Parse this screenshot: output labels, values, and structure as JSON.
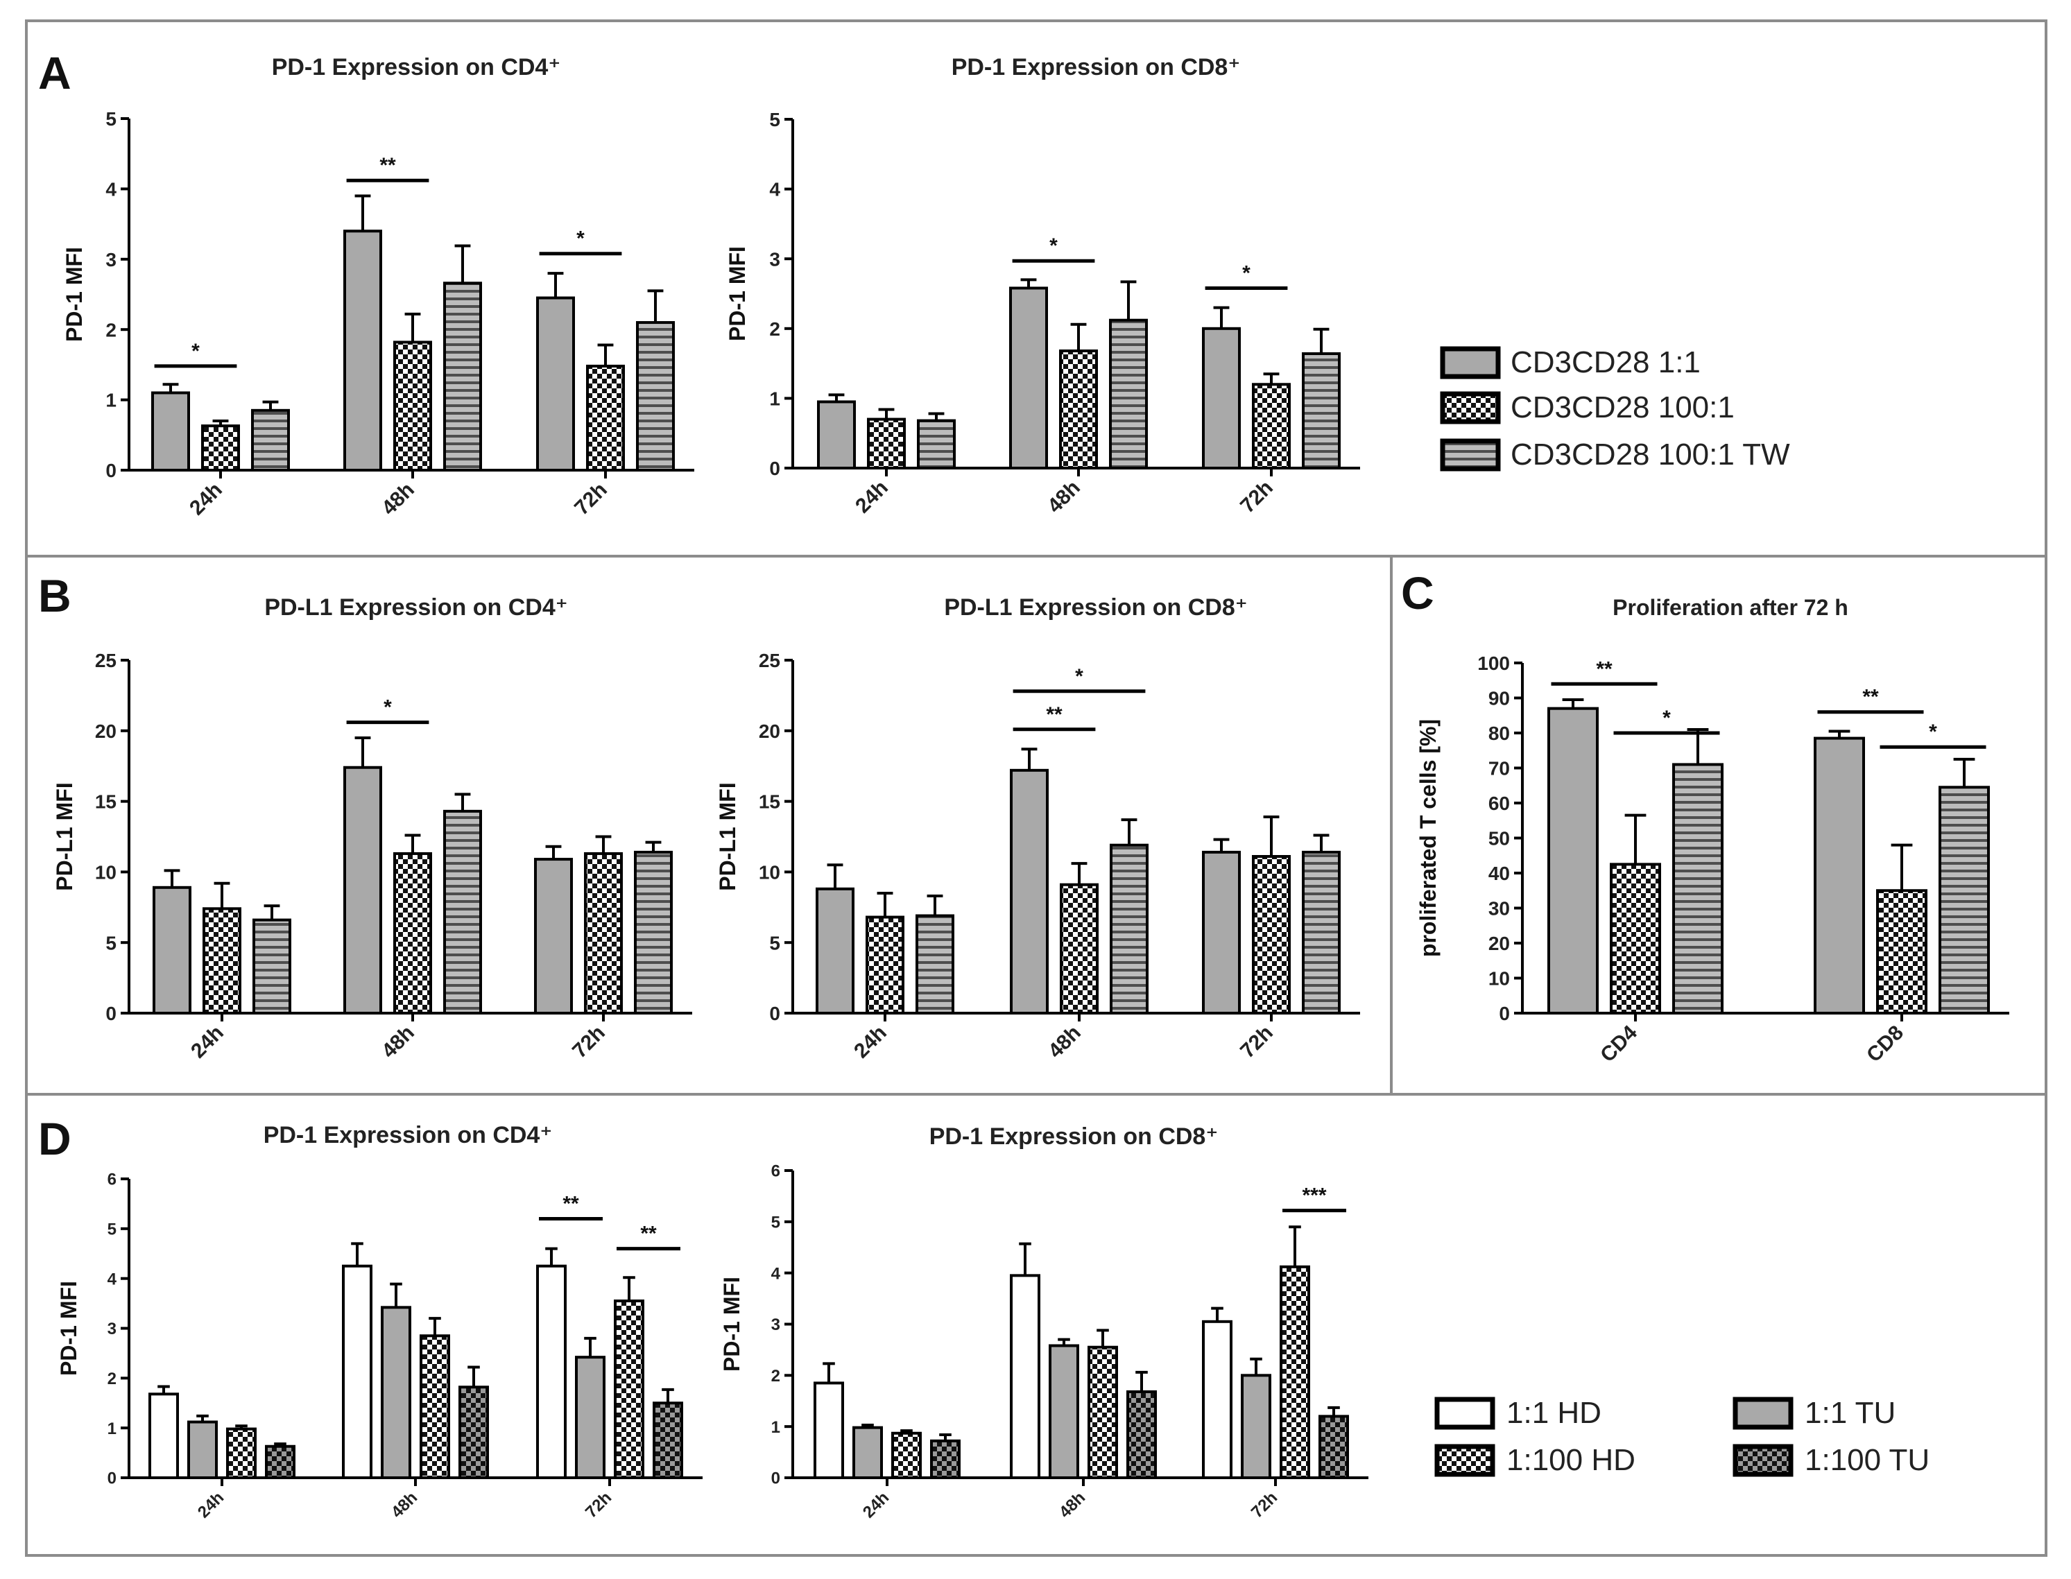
{
  "colors": {
    "bar_gray": "#a9a9a9",
    "bar_white": "#ffffff",
    "stroke": "#000000",
    "panel_border": "#8c8c8c",
    "background": "#ffffff"
  },
  "legends": {
    "abc": {
      "items": [
        {
          "label": "CD3CD28 1:1",
          "pattern": "gray"
        },
        {
          "label": "CD3CD28 100:1",
          "pattern": "checker_white"
        },
        {
          "label": "CD3CD28 100:1 TW",
          "pattern": "hlines"
        }
      ]
    },
    "d": {
      "items": [
        {
          "label": "1:1 HD",
          "pattern": "white"
        },
        {
          "label": "1:1 TU",
          "pattern": "gray"
        },
        {
          "label": "1:100 HD",
          "pattern": "checker_white"
        },
        {
          "label": "1:100 TU",
          "pattern": "checker_gray"
        }
      ]
    }
  },
  "chart_data": [
    {
      "panel": "A",
      "type": "bar",
      "title": "PD-1 Expression  on CD4⁺",
      "ylabel": "PD-1  MFI",
      "ylim": [
        0,
        5
      ],
      "yticks": [
        "0",
        "1",
        "2",
        "3",
        "4",
        "5"
      ],
      "categories": [
        "24h",
        "48h",
        "72h"
      ],
      "series": [
        {
          "name": "CD3CD28 1:1",
          "pattern": "gray",
          "values": [
            1.1,
            3.4,
            2.45
          ],
          "errors": [
            0.12,
            0.5,
            0.35
          ]
        },
        {
          "name": "CD3CD28 100:1",
          "pattern": "checker_white",
          "values": [
            0.63,
            1.82,
            1.48
          ],
          "errors": [
            0.07,
            0.4,
            0.3
          ]
        },
        {
          "name": "CD3CD28 100:1 TW",
          "pattern": "hlines",
          "values": [
            0.85,
            2.66,
            2.1
          ],
          "errors": [
            0.12,
            0.53,
            0.45
          ]
        }
      ],
      "significance": [
        {
          "group": 0,
          "from": 0,
          "to": 1,
          "y": 1.48,
          "label": "*"
        },
        {
          "group": 1,
          "from": 0,
          "to": 1,
          "y": 4.12,
          "label": "**"
        },
        {
          "group": 2,
          "from": 0,
          "to": 1,
          "y": 3.08,
          "label": "*"
        }
      ]
    },
    {
      "panel": "A",
      "type": "bar",
      "title": "PD-1 Expression  on CD8⁺",
      "ylabel": "PD-1  MFI",
      "ylim": [
        0,
        5
      ],
      "yticks": [
        "0",
        "1",
        "2",
        "3",
        "4",
        "5"
      ],
      "categories": [
        "24h",
        "48h",
        "72h"
      ],
      "series": [
        {
          "name": "CD3CD28 1:1",
          "pattern": "gray",
          "values": [
            0.95,
            2.58,
            2.0
          ],
          "errors": [
            0.1,
            0.12,
            0.3
          ]
        },
        {
          "name": "CD3CD28 100:1",
          "pattern": "checker_white",
          "values": [
            0.7,
            1.68,
            1.2
          ],
          "errors": [
            0.14,
            0.38,
            0.15
          ]
        },
        {
          "name": "CD3CD28 100:1 TW",
          "pattern": "hlines",
          "values": [
            0.68,
            2.12,
            1.64
          ],
          "errors": [
            0.1,
            0.55,
            0.35
          ]
        }
      ],
      "significance": [
        {
          "group": 1,
          "from": 0,
          "to": 1,
          "y": 2.97,
          "label": "*"
        },
        {
          "group": 2,
          "from": 0,
          "to": 1,
          "y": 2.58,
          "label": "*"
        }
      ]
    },
    {
      "panel": "B",
      "type": "bar",
      "title": "PD-L1 Expression  on CD4⁺",
      "ylabel": "PD-L1  MFI",
      "ylim": [
        0,
        25
      ],
      "yticks": [
        "0",
        "5",
        "10",
        "15",
        "20",
        "25"
      ],
      "categories": [
        "24h",
        "48h",
        "72h"
      ],
      "series": [
        {
          "name": "CD3CD28 1:1",
          "pattern": "gray",
          "values": [
            8.9,
            17.4,
            10.9
          ],
          "errors": [
            1.2,
            2.1,
            0.9
          ]
        },
        {
          "name": "CD3CD28 100:1",
          "pattern": "checker_white",
          "values": [
            7.4,
            11.3,
            11.3
          ],
          "errors": [
            1.8,
            1.3,
            1.2
          ]
        },
        {
          "name": "CD3CD28 100:1 TW",
          "pattern": "hlines",
          "values": [
            6.6,
            14.3,
            11.4
          ],
          "errors": [
            1.0,
            1.2,
            0.7
          ]
        }
      ],
      "significance": [
        {
          "group": 1,
          "from": 0,
          "to": 1,
          "y": 20.6,
          "label": "*"
        }
      ]
    },
    {
      "panel": "B",
      "type": "bar",
      "title": "PD-L1 Expression  on CD8⁺",
      "ylabel": "PD-L1  MFI",
      "ylim": [
        0,
        25
      ],
      "yticks": [
        "0",
        "5",
        "10",
        "15",
        "20",
        "25"
      ],
      "categories": [
        "24h",
        "48h",
        "72h"
      ],
      "series": [
        {
          "name": "CD3CD28 1:1",
          "pattern": "gray",
          "values": [
            8.8,
            17.2,
            11.4
          ],
          "errors": [
            1.7,
            1.5,
            0.9
          ]
        },
        {
          "name": "CD3CD28 100:1",
          "pattern": "checker_white",
          "values": [
            6.8,
            9.1,
            11.1
          ],
          "errors": [
            1.7,
            1.5,
            2.8
          ]
        },
        {
          "name": "CD3CD28 100:1 TW",
          "pattern": "hlines",
          "values": [
            6.9,
            11.9,
            11.4
          ],
          "errors": [
            1.4,
            1.8,
            1.2
          ]
        }
      ],
      "significance": [
        {
          "group": 1,
          "from": 0,
          "to": 1,
          "y": 20.1,
          "label": "**"
        },
        {
          "group": 1,
          "from": 0,
          "to": 2,
          "y": 22.8,
          "label": "*"
        }
      ]
    },
    {
      "panel": "C",
      "type": "bar",
      "title": "Proliferation  after 72 h",
      "ylabel": "proliferated T cells [%]",
      "ylim": [
        0,
        100
      ],
      "yticks": [
        "0",
        "10",
        "20",
        "30",
        "40",
        "50",
        "60",
        "70",
        "80",
        "90",
        "100"
      ],
      "categories": [
        "CD4",
        "CD8"
      ],
      "series": [
        {
          "name": "CD3CD28 1:1",
          "pattern": "gray",
          "values": [
            87,
            78.5
          ],
          "errors": [
            2.5,
            2.0
          ]
        },
        {
          "name": "CD3CD28 100:1",
          "pattern": "checker_white",
          "values": [
            42.5,
            35
          ],
          "errors": [
            14,
            13
          ]
        },
        {
          "name": "CD3CD28 100:1 TW",
          "pattern": "hlines",
          "values": [
            71,
            64.5
          ],
          "errors": [
            10,
            8
          ]
        }
      ],
      "significance": [
        {
          "group": 0,
          "from": 0,
          "to": 1,
          "y": 94,
          "label": "**"
        },
        {
          "group": 0,
          "from": 1,
          "to": 2,
          "y": 80,
          "label": "*"
        },
        {
          "group": 1,
          "from": 0,
          "to": 1,
          "y": 86,
          "label": "**"
        },
        {
          "group": 1,
          "from": 1,
          "to": 2,
          "y": 76,
          "label": "*"
        }
      ]
    },
    {
      "panel": "D",
      "type": "bar",
      "title": "PD-1 Expression  on CD4⁺",
      "ylabel": "PD-1 MFI",
      "ylim": [
        0,
        6
      ],
      "yticks": [
        "0",
        "1",
        "2",
        "3",
        "4",
        "5",
        "6"
      ],
      "categories": [
        "24h",
        "48h",
        "72h"
      ],
      "series": [
        {
          "name": "1:1 HD",
          "pattern": "white",
          "values": [
            1.68,
            4.25,
            4.25
          ],
          "errors": [
            0.15,
            0.45,
            0.35
          ]
        },
        {
          "name": "1:1 TU",
          "pattern": "gray",
          "values": [
            1.12,
            3.42,
            2.42
          ],
          "errors": [
            0.12,
            0.47,
            0.38
          ]
        },
        {
          "name": "1:100 HD",
          "pattern": "checker_white",
          "values": [
            0.98,
            2.85,
            3.55
          ],
          "errors": [
            0.06,
            0.35,
            0.47
          ]
        },
        {
          "name": "1:100 TU",
          "pattern": "checker_gray",
          "values": [
            0.63,
            1.82,
            1.5
          ],
          "errors": [
            0.05,
            0.4,
            0.27
          ]
        }
      ],
      "significance": [
        {
          "group": 2,
          "from": 0,
          "to": 1,
          "y": 5.2,
          "label": "**"
        },
        {
          "group": 2,
          "from": 2,
          "to": 3,
          "y": 4.6,
          "label": "**"
        }
      ]
    },
    {
      "panel": "D",
      "type": "bar",
      "title": "PD-1 Expression  on CD8⁺",
      "ylabel": "PD-1 MFI",
      "ylim": [
        0,
        6
      ],
      "yticks": [
        "0",
        "1",
        "2",
        "3",
        "4",
        "5",
        "6"
      ],
      "categories": [
        "24h",
        "48h",
        "72h"
      ],
      "series": [
        {
          "name": "1:1 HD",
          "pattern": "white",
          "values": [
            1.85,
            3.95,
            3.05
          ],
          "errors": [
            0.38,
            0.62,
            0.26
          ]
        },
        {
          "name": "1:1 TU",
          "pattern": "gray",
          "values": [
            0.98,
            2.58,
            2.0
          ],
          "errors": [
            0.05,
            0.12,
            0.32
          ]
        },
        {
          "name": "1:100 HD",
          "pattern": "checker_white",
          "values": [
            0.87,
            2.55,
            4.12
          ],
          "errors": [
            0.05,
            0.33,
            0.78
          ]
        },
        {
          "name": "1:100 TU",
          "pattern": "checker_gray",
          "values": [
            0.72,
            1.68,
            1.2
          ],
          "errors": [
            0.12,
            0.38,
            0.17
          ]
        }
      ],
      "significance": [
        {
          "group": 2,
          "from": 2,
          "to": 3,
          "y": 5.22,
          "label": "***"
        }
      ]
    }
  ],
  "panel_letters": [
    "A",
    "B",
    "C",
    "D"
  ]
}
